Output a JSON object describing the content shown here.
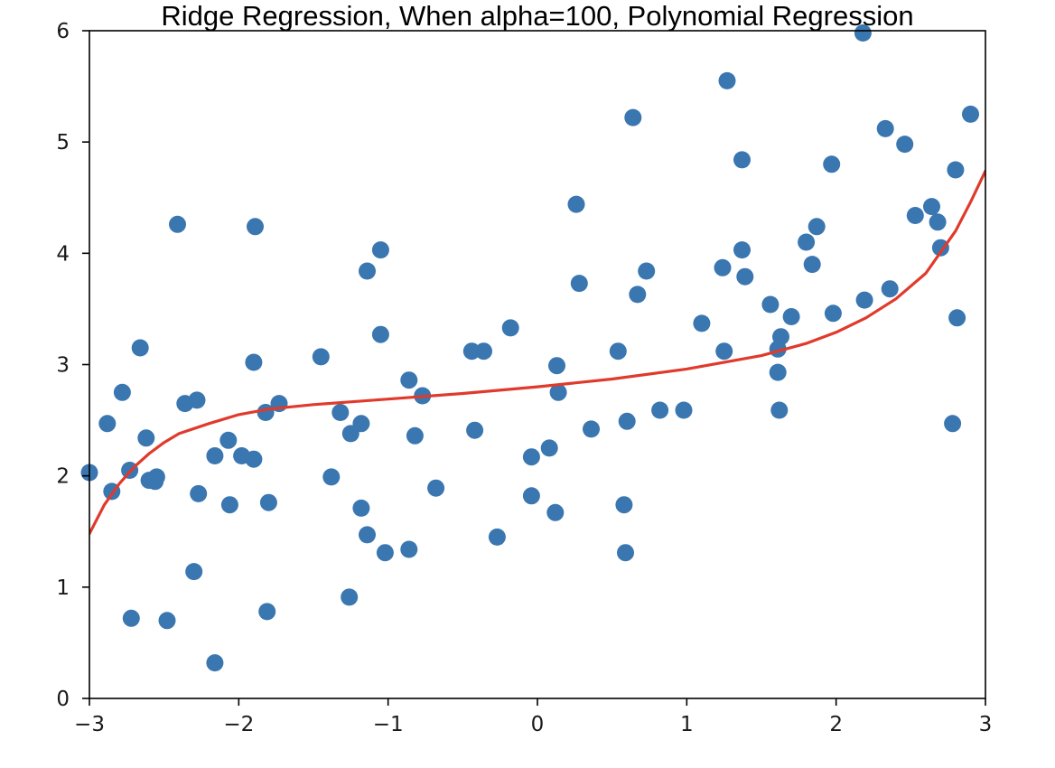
{
  "chart_data": {
    "type": "scatter",
    "title": "Ridge Regression, When alpha=100, Polynomial Regression",
    "xlabel": "",
    "ylabel": "",
    "xlim": [
      -3,
      3
    ],
    "ylim": [
      0,
      6
    ],
    "x_ticks": [
      -3,
      -2,
      -1,
      0,
      1,
      2,
      3
    ],
    "x_tick_labels": [
      "−3",
      "−2",
      "−1",
      "0",
      "1",
      "2",
      "3"
    ],
    "y_ticks": [
      0,
      1,
      2,
      3,
      4,
      5,
      6
    ],
    "y_tick_labels": [
      "0",
      "1",
      "2",
      "3",
      "4",
      "5",
      "6"
    ],
    "grid": false,
    "colors": {
      "points": "#3a76b0",
      "fit_line": "#e03a2c",
      "axes": "#000000"
    },
    "series": [
      {
        "kind": "scatter",
        "points": [
          [
            -3.0,
            2.03
          ],
          [
            -2.88,
            2.47
          ],
          [
            -2.85,
            1.86
          ],
          [
            -2.78,
            2.75
          ],
          [
            -2.73,
            2.05
          ],
          [
            -2.72,
            0.72
          ],
          [
            -2.66,
            3.15
          ],
          [
            -2.62,
            2.34
          ],
          [
            -2.6,
            1.96
          ],
          [
            -2.56,
            1.95
          ],
          [
            -2.55,
            1.99
          ],
          [
            -2.48,
            0.7
          ],
          [
            -2.41,
            4.26
          ],
          [
            -2.36,
            2.65
          ],
          [
            -2.3,
            1.14
          ],
          [
            -2.28,
            2.68
          ],
          [
            -2.27,
            1.84
          ],
          [
            -2.16,
            2.18
          ],
          [
            -2.16,
            0.32
          ],
          [
            -2.07,
            2.32
          ],
          [
            -2.06,
            1.74
          ],
          [
            -1.98,
            2.18
          ],
          [
            -1.9,
            2.15
          ],
          [
            -1.9,
            3.02
          ],
          [
            -1.89,
            4.24
          ],
          [
            -1.82,
            2.57
          ],
          [
            -1.81,
            0.78
          ],
          [
            -1.8,
            1.76
          ],
          [
            -1.73,
            2.65
          ],
          [
            -1.45,
            3.07
          ],
          [
            -1.38,
            1.99
          ],
          [
            -1.32,
            2.57
          ],
          [
            -1.26,
            0.91
          ],
          [
            -1.25,
            2.38
          ],
          [
            -1.18,
            2.47
          ],
          [
            -1.18,
            1.71
          ],
          [
            -1.14,
            3.84
          ],
          [
            -1.14,
            1.47
          ],
          [
            -1.05,
            4.03
          ],
          [
            -1.05,
            3.27
          ],
          [
            -1.02,
            1.31
          ],
          [
            -0.86,
            2.86
          ],
          [
            -0.86,
            1.34
          ],
          [
            -0.82,
            2.36
          ],
          [
            -0.77,
            2.72
          ],
          [
            -0.68,
            1.89
          ],
          [
            -0.44,
            3.12
          ],
          [
            -0.42,
            2.41
          ],
          [
            -0.36,
            3.12
          ],
          [
            -0.27,
            1.45
          ],
          [
            -0.18,
            3.33
          ],
          [
            -0.04,
            2.17
          ],
          [
            -0.04,
            1.82
          ],
          [
            0.08,
            2.25
          ],
          [
            0.12,
            1.67
          ],
          [
            0.13,
            2.99
          ],
          [
            0.14,
            2.75
          ],
          [
            0.26,
            4.44
          ],
          [
            0.28,
            3.73
          ],
          [
            0.36,
            2.42
          ],
          [
            0.54,
            3.12
          ],
          [
            0.58,
            1.74
          ],
          [
            0.59,
            1.31
          ],
          [
            0.6,
            2.49
          ],
          [
            0.64,
            5.22
          ],
          [
            0.67,
            3.63
          ],
          [
            0.73,
            3.84
          ],
          [
            0.82,
            2.59
          ],
          [
            0.98,
            2.59
          ],
          [
            1.1,
            3.37
          ],
          [
            1.24,
            3.87
          ],
          [
            1.25,
            3.12
          ],
          [
            1.27,
            5.55
          ],
          [
            1.37,
            4.84
          ],
          [
            1.37,
            4.03
          ],
          [
            1.39,
            3.79
          ],
          [
            1.56,
            3.54
          ],
          [
            1.61,
            2.93
          ],
          [
            1.61,
            3.14
          ],
          [
            1.62,
            2.59
          ],
          [
            1.63,
            3.25
          ],
          [
            1.7,
            3.43
          ],
          [
            1.8,
            4.1
          ],
          [
            1.84,
            3.9
          ],
          [
            1.87,
            4.24
          ],
          [
            1.97,
            4.8
          ],
          [
            1.98,
            3.46
          ],
          [
            2.18,
            5.98
          ],
          [
            2.19,
            3.58
          ],
          [
            2.33,
            5.12
          ],
          [
            2.36,
            3.68
          ],
          [
            2.46,
            4.98
          ],
          [
            2.53,
            4.34
          ],
          [
            2.64,
            4.42
          ],
          [
            2.68,
            4.28
          ],
          [
            2.7,
            4.05
          ],
          [
            2.78,
            2.47
          ],
          [
            2.8,
            4.75
          ],
          [
            2.81,
            3.42
          ],
          [
            2.9,
            5.25
          ]
        ]
      },
      {
        "kind": "line",
        "x": [
          -3.0,
          -2.9,
          -2.8,
          -2.7,
          -2.6,
          -2.5,
          -2.4,
          -2.2,
          -2.0,
          -1.8,
          -1.5,
          -1.0,
          -0.5,
          0.0,
          0.5,
          1.0,
          1.5,
          1.8,
          2.0,
          2.2,
          2.4,
          2.6,
          2.8,
          2.9,
          3.0
        ],
        "y": [
          1.48,
          1.74,
          1.93,
          2.08,
          2.2,
          2.3,
          2.38,
          2.47,
          2.55,
          2.6,
          2.64,
          2.69,
          2.74,
          2.8,
          2.87,
          2.96,
          3.08,
          3.19,
          3.29,
          3.42,
          3.59,
          3.82,
          4.2,
          4.46,
          4.74
        ]
      }
    ]
  }
}
